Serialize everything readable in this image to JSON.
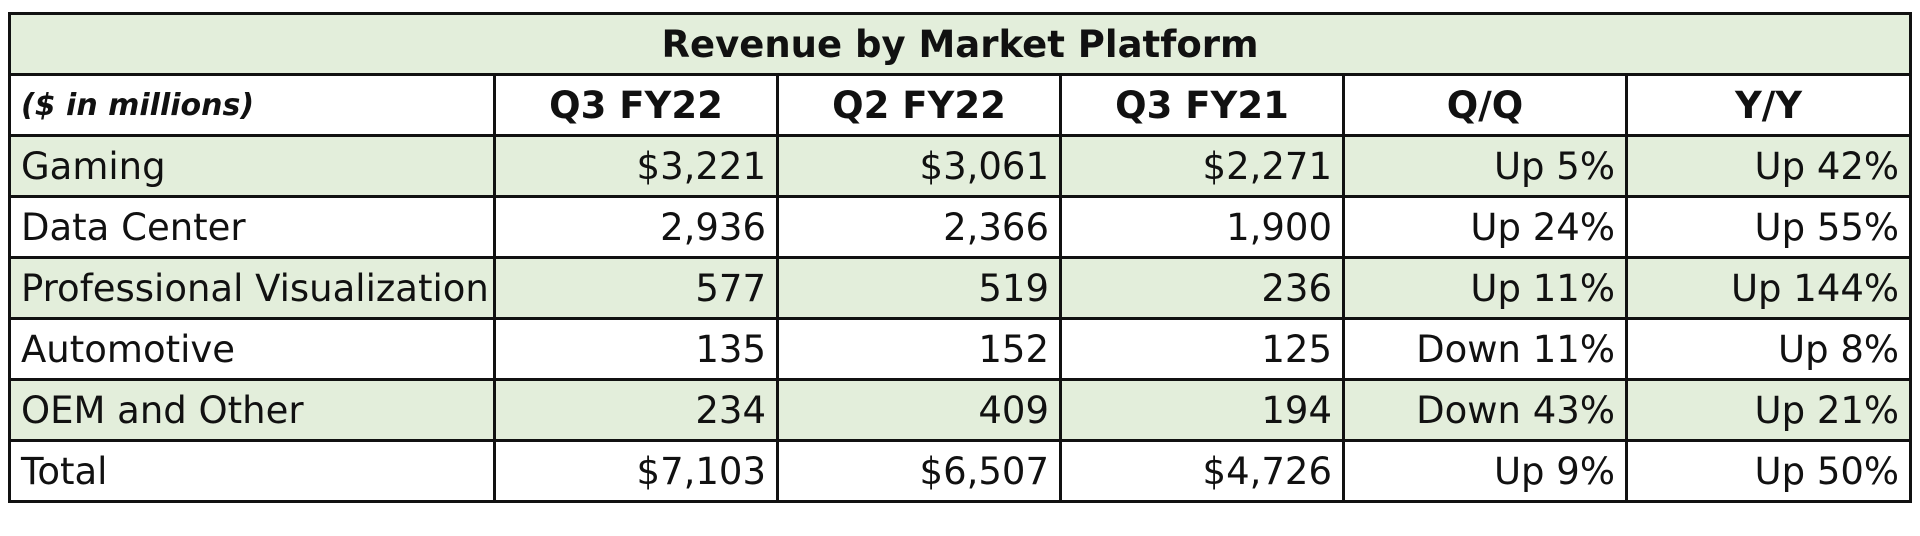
{
  "chart_data": {
    "type": "table",
    "title": "Revenue by Market Platform",
    "units_label": "($ in millions)",
    "columns": [
      "Q3 FY22",
      "Q2 FY22",
      "Q3 FY21",
      "Q/Q",
      "Y/Y"
    ],
    "rows": [
      {
        "label": "Gaming",
        "values": [
          "$3,221",
          "$3,061",
          "$2,271",
          "Up 5%",
          "Up 42%"
        ]
      },
      {
        "label": "Data Center",
        "values": [
          "2,936",
          "2,366",
          "1,900",
          "Up 24%",
          "Up 55%"
        ]
      },
      {
        "label": "Professional Visualization",
        "values": [
          "577",
          "519",
          "236",
          "Up 11%",
          "Up 144%"
        ]
      },
      {
        "label": "Automotive",
        "values": [
          "135",
          "152",
          "125",
          "Down 11%",
          "Up 8%"
        ]
      },
      {
        "label": "OEM and Other",
        "values": [
          "234",
          "409",
          "194",
          "Down 43%",
          "Up 21%"
        ]
      },
      {
        "label": "Total",
        "values": [
          "$7,103",
          "$6,507",
          "$4,726",
          "Up 9%",
          "Up 50%"
        ]
      }
    ]
  },
  "colors": {
    "row_shade": "#e3eedb",
    "border": "#111111"
  }
}
